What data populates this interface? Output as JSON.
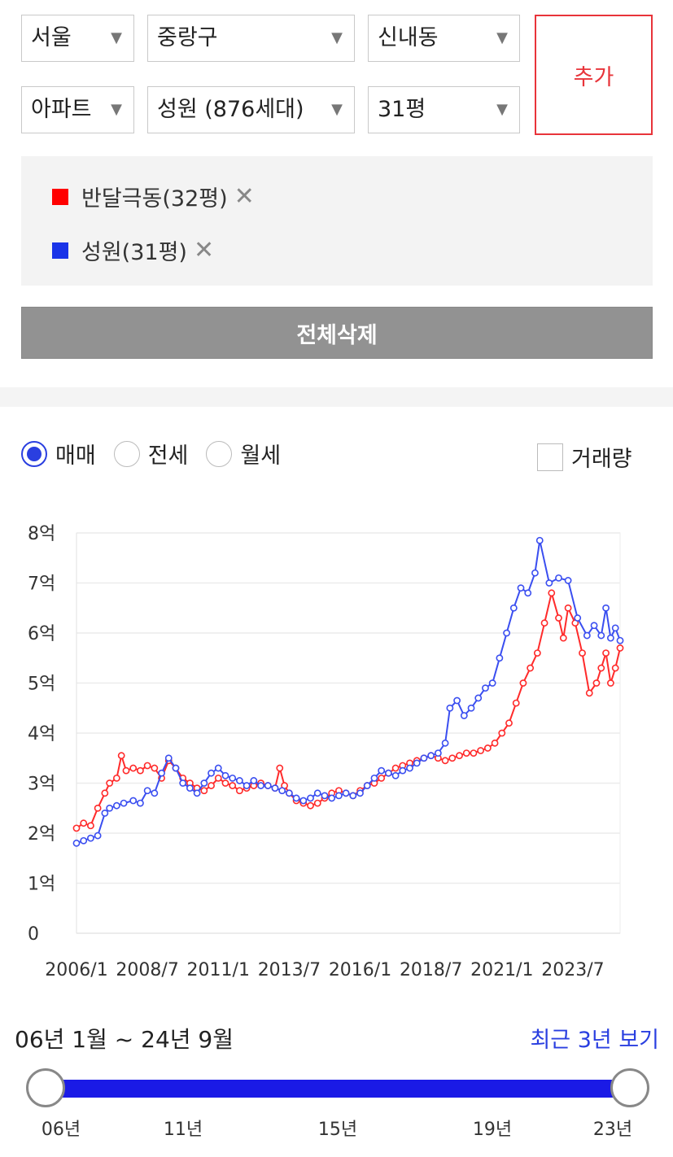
{
  "selectors": {
    "city": "서울",
    "district": "중랑구",
    "dong": "신내동",
    "type": "아파트",
    "complex": "성원 (876세대)",
    "size": "31평"
  },
  "add_label": "추가",
  "compare": [
    {
      "name": "반달극동(32평)",
      "color": "#ff0000"
    },
    {
      "name": "성원(31평)",
      "color": "#1a34e8"
    }
  ],
  "remove_glyph": "✕",
  "clear_all_label": "전체삭제",
  "tabs": [
    {
      "label": "매매",
      "selected": true
    },
    {
      "label": "전세",
      "selected": false
    },
    {
      "label": "월세",
      "selected": false
    }
  ],
  "volume_label": "거래량",
  "range_text": "06년 1월 ~ 24년 9월",
  "recent_label": "최근 3년 보기",
  "slider_ticks": [
    "06년",
    "11년",
    "15년",
    "19년",
    "23년"
  ],
  "chart_data": {
    "type": "line",
    "x_ticks": [
      "2006/1",
      "2008/7",
      "2011/1",
      "2013/7",
      "2016/1",
      "2018/7",
      "2021/1",
      "2023/7"
    ],
    "y_ticks": [
      "0",
      "1억",
      "2억",
      "3억",
      "4억",
      "5억",
      "6억",
      "7억",
      "8억"
    ],
    "ylim": [
      0,
      8
    ],
    "xlim": [
      "2006-01",
      "2025-03"
    ],
    "grid": true,
    "series": [
      {
        "name": "반달극동(32평)",
        "color": "#ff2a2a",
        "points": [
          [
            "2006-01",
            2.1
          ],
          [
            "2006-04",
            2.2
          ],
          [
            "2006-07",
            2.15
          ],
          [
            "2006-10",
            2.5
          ],
          [
            "2007-01",
            2.8
          ],
          [
            "2007-03",
            3.0
          ],
          [
            "2007-06",
            3.1
          ],
          [
            "2007-08",
            3.55
          ],
          [
            "2007-10",
            3.25
          ],
          [
            "2008-01",
            3.3
          ],
          [
            "2008-04",
            3.25
          ],
          [
            "2008-07",
            3.35
          ],
          [
            "2008-10",
            3.3
          ],
          [
            "2009-01",
            3.1
          ],
          [
            "2009-04",
            3.45
          ],
          [
            "2009-07",
            3.3
          ],
          [
            "2009-10",
            3.1
          ],
          [
            "2010-01",
            3.0
          ],
          [
            "2010-04",
            2.9
          ],
          [
            "2010-07",
            2.85
          ],
          [
            "2010-10",
            2.95
          ],
          [
            "2011-01",
            3.1
          ],
          [
            "2011-04",
            3.0
          ],
          [
            "2011-07",
            2.95
          ],
          [
            "2011-10",
            2.85
          ],
          [
            "2012-01",
            2.9
          ],
          [
            "2012-04",
            2.95
          ],
          [
            "2012-07",
            3.0
          ],
          [
            "2012-10",
            2.95
          ],
          [
            "2013-01",
            2.9
          ],
          [
            "2013-03",
            3.3
          ],
          [
            "2013-05",
            2.95
          ],
          [
            "2013-07",
            2.8
          ],
          [
            "2013-10",
            2.65
          ],
          [
            "2014-01",
            2.6
          ],
          [
            "2014-04",
            2.55
          ],
          [
            "2014-07",
            2.6
          ],
          [
            "2014-10",
            2.7
          ],
          [
            "2015-01",
            2.8
          ],
          [
            "2015-04",
            2.85
          ],
          [
            "2015-07",
            2.8
          ],
          [
            "2015-10",
            2.75
          ],
          [
            "2016-01",
            2.85
          ],
          [
            "2016-04",
            2.95
          ],
          [
            "2016-07",
            3.0
          ],
          [
            "2016-10",
            3.1
          ],
          [
            "2017-01",
            3.2
          ],
          [
            "2017-04",
            3.3
          ],
          [
            "2017-07",
            3.35
          ],
          [
            "2017-10",
            3.4
          ],
          [
            "2018-01",
            3.45
          ],
          [
            "2018-04",
            3.5
          ],
          [
            "2018-07",
            3.55
          ],
          [
            "2018-10",
            3.5
          ],
          [
            "2019-01",
            3.45
          ],
          [
            "2019-04",
            3.5
          ],
          [
            "2019-07",
            3.55
          ],
          [
            "2019-10",
            3.6
          ],
          [
            "2020-01",
            3.6
          ],
          [
            "2020-04",
            3.65
          ],
          [
            "2020-07",
            3.7
          ],
          [
            "2020-10",
            3.8
          ],
          [
            "2021-01",
            4.0
          ],
          [
            "2021-04",
            4.2
          ],
          [
            "2021-07",
            4.6
          ],
          [
            "2021-10",
            5.0
          ],
          [
            "2022-01",
            5.3
          ],
          [
            "2022-04",
            5.6
          ],
          [
            "2022-07",
            6.2
          ],
          [
            "2022-10",
            6.8
          ],
          [
            "2023-01",
            6.3
          ],
          [
            "2023-03",
            5.9
          ],
          [
            "2023-05",
            6.5
          ],
          [
            "2023-08",
            6.2
          ],
          [
            "2023-11",
            5.6
          ],
          [
            "2024-02",
            4.8
          ],
          [
            "2024-05",
            5.0
          ],
          [
            "2024-07",
            5.3
          ],
          [
            "2024-09",
            5.6
          ],
          [
            "2024-11",
            5.0
          ],
          [
            "2025-01",
            5.3
          ],
          [
            "2025-03",
            5.7
          ]
        ]
      },
      {
        "name": "성원(31평)",
        "color": "#3a4ef0",
        "points": [
          [
            "2006-01",
            1.8
          ],
          [
            "2006-04",
            1.85
          ],
          [
            "2006-07",
            1.9
          ],
          [
            "2006-10",
            1.95
          ],
          [
            "2007-01",
            2.4
          ],
          [
            "2007-03",
            2.5
          ],
          [
            "2007-06",
            2.55
          ],
          [
            "2007-09",
            2.6
          ],
          [
            "2008-01",
            2.65
          ],
          [
            "2008-04",
            2.6
          ],
          [
            "2008-07",
            2.85
          ],
          [
            "2008-10",
            2.8
          ],
          [
            "2009-01",
            3.2
          ],
          [
            "2009-04",
            3.5
          ],
          [
            "2009-07",
            3.3
          ],
          [
            "2009-10",
            3.0
          ],
          [
            "2010-01",
            2.9
          ],
          [
            "2010-04",
            2.8
          ],
          [
            "2010-07",
            3.0
          ],
          [
            "2010-10",
            3.2
          ],
          [
            "2011-01",
            3.3
          ],
          [
            "2011-04",
            3.15
          ],
          [
            "2011-07",
            3.1
          ],
          [
            "2011-10",
            3.05
          ],
          [
            "2012-01",
            2.95
          ],
          [
            "2012-04",
            3.05
          ],
          [
            "2012-07",
            2.95
          ],
          [
            "2012-10",
            2.95
          ],
          [
            "2013-01",
            2.9
          ],
          [
            "2013-04",
            2.85
          ],
          [
            "2013-07",
            2.8
          ],
          [
            "2013-10",
            2.7
          ],
          [
            "2014-01",
            2.65
          ],
          [
            "2014-04",
            2.7
          ],
          [
            "2014-07",
            2.8
          ],
          [
            "2014-10",
            2.75
          ],
          [
            "2015-01",
            2.7
          ],
          [
            "2015-04",
            2.75
          ],
          [
            "2015-07",
            2.8
          ],
          [
            "2015-10",
            2.75
          ],
          [
            "2016-01",
            2.8
          ],
          [
            "2016-04",
            2.95
          ],
          [
            "2016-07",
            3.1
          ],
          [
            "2016-10",
            3.25
          ],
          [
            "2017-01",
            3.2
          ],
          [
            "2017-04",
            3.15
          ],
          [
            "2017-07",
            3.25
          ],
          [
            "2017-10",
            3.3
          ],
          [
            "2018-01",
            3.4
          ],
          [
            "2018-04",
            3.5
          ],
          [
            "2018-07",
            3.55
          ],
          [
            "2018-10",
            3.6
          ],
          [
            "2019-01",
            3.8
          ],
          [
            "2019-03",
            4.5
          ],
          [
            "2019-06",
            4.65
          ],
          [
            "2019-09",
            4.35
          ],
          [
            "2019-12",
            4.5
          ],
          [
            "2020-03",
            4.7
          ],
          [
            "2020-06",
            4.9
          ],
          [
            "2020-09",
            5.0
          ],
          [
            "2020-12",
            5.5
          ],
          [
            "2021-03",
            6.0
          ],
          [
            "2021-06",
            6.5
          ],
          [
            "2021-09",
            6.9
          ],
          [
            "2021-12",
            6.8
          ],
          [
            "2022-03",
            7.2
          ],
          [
            "2022-05",
            7.85
          ],
          [
            "2022-09",
            7.0
          ],
          [
            "2023-01",
            7.1
          ],
          [
            "2023-05",
            7.05
          ],
          [
            "2023-09",
            6.3
          ],
          [
            "2024-01",
            5.95
          ],
          [
            "2024-04",
            6.15
          ],
          [
            "2024-07",
            5.95
          ],
          [
            "2024-09",
            6.5
          ],
          [
            "2024-11",
            5.9
          ],
          [
            "2025-01",
            6.1
          ],
          [
            "2025-03",
            5.85
          ]
        ]
      }
    ]
  }
}
